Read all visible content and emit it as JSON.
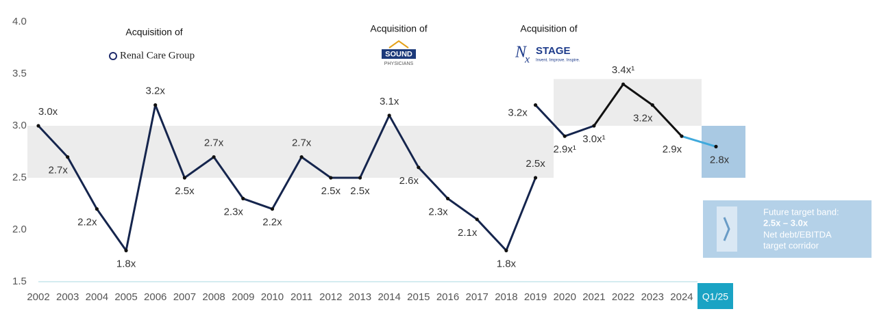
{
  "chart_data": {
    "type": "line",
    "categories": [
      "2002",
      "2003",
      "2004",
      "2005",
      "2006",
      "2007",
      "2008",
      "2009",
      "2010",
      "2011",
      "2012",
      "2013",
      "2014",
      "2015",
      "2016",
      "2017",
      "2018",
      "2019",
      "2020",
      "2021",
      "2022",
      "2023",
      "2024",
      "Q1/25"
    ],
    "series": [
      {
        "color": "#15254d",
        "values": [
          3.0,
          2.7,
          2.2,
          1.8,
          3.2,
          2.5,
          2.7,
          2.3,
          2.2,
          2.7,
          2.5,
          2.5,
          3.1,
          2.6,
          2.3,
          2.1,
          1.8,
          2.5,
          null,
          null,
          null,
          null,
          null,
          null
        ],
        "value_labels": [
          "3.0x",
          "2.7x",
          "2.2x",
          "1.8x",
          "3.2x",
          "2.5x",
          "2.7x",
          "2.3x",
          "2.2x",
          "2.7x",
          "2.5x",
          "2.5x",
          "3.1x",
          "2.6x",
          "2.3x",
          "2.1x",
          "1.8x",
          "2.5x",
          null,
          null,
          null,
          null,
          null,
          null
        ]
      },
      {
        "color": "#15254d",
        "segment_colors": [
          "#15254d",
          "#15254d",
          "#111111",
          "#111111",
          "#111111",
          "#3fa9dc"
        ],
        "values": [
          null,
          null,
          null,
          null,
          null,
          null,
          null,
          null,
          null,
          null,
          null,
          null,
          null,
          null,
          null,
          null,
          null,
          3.2,
          2.9,
          3.0,
          3.4,
          3.2,
          2.9,
          2.8
        ],
        "value_labels": [
          null,
          null,
          null,
          null,
          null,
          null,
          null,
          null,
          null,
          null,
          null,
          null,
          null,
          null,
          null,
          null,
          null,
          "3.2x",
          "2.9x¹",
          "3.0x¹",
          "3.4x¹",
          "3.2x",
          "2.9x",
          "2.8x"
        ]
      }
    ],
    "ylim": [
      1.5,
      4.0
    ],
    "yticks": [
      {
        "value": 1.5,
        "label": "1.5"
      },
      {
        "value": 2,
        "label": "2.0"
      },
      2.5,
      {
        "value": 3,
        "label": "3.0"
      },
      3.5,
      {
        "value": 4,
        "label": "4.0"
      }
    ],
    "bands": [
      {
        "from": 2.5,
        "to": 3.0,
        "color": "#ececec"
      },
      {
        "from": 3.0,
        "to": 3.45,
        "color": "#ececec"
      },
      {
        "from": 2.5,
        "to": 3.0,
        "color": "#a9c9e3"
      }
    ],
    "annotations": {
      "acq1": "Acquisition of",
      "acq2": "Acquisition of",
      "acq3": "Acquisition of",
      "logo1": "Renal Care Group",
      "logo2a": "SOUND",
      "logo2b": "PHYSICIANS",
      "logo3a": "N",
      "logo3b": "x",
      "logo3c": "STAGE",
      "logo3d": "Invent. Improve. Inspire."
    },
    "target_box": {
      "line1": "Future target band:",
      "line2": "2.5x – 3.0x",
      "line3": "Net debt/EBITDA",
      "line4": "target corridor"
    }
  }
}
